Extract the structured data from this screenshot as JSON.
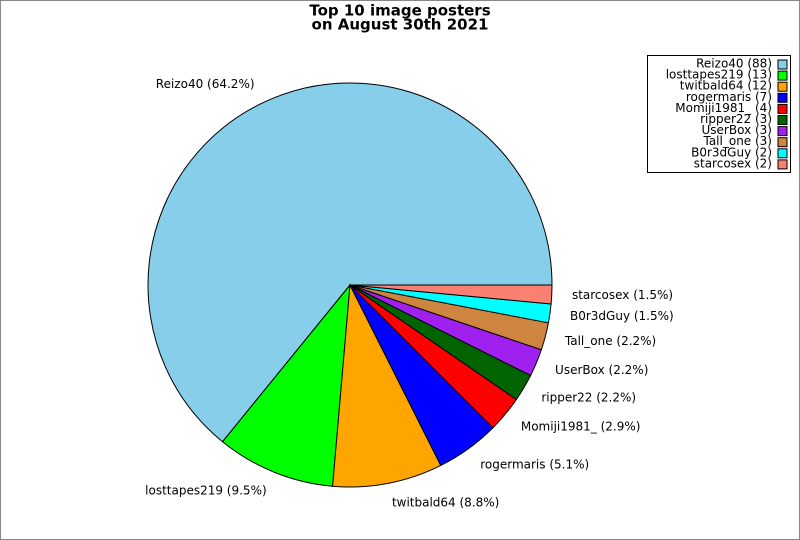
{
  "chart_data": {
    "type": "pie",
    "title": "Top 10 image posters",
    "subtitle": "on August 30th 2021",
    "categories": [
      "Reizo40 (88)",
      "losttapes219 (13)",
      "twitbald64 (12)",
      "rogermaris (7)",
      "Momiji1981_ (4)",
      "ripper22 (3)",
      "UserBox (3)",
      "Tall_one (3)",
      "B0r3dGuy (2)",
      "starcosex (2)"
    ],
    "values": [
      64.2,
      9.5,
      8.8,
      5.1,
      2.9,
      2.2,
      2.2,
      2.2,
      1.5,
      1.5
    ],
    "value_labels": [
      "Reizo40 (64.2%)",
      "losttapes219 (9.5%)",
      "twitbald64 (8.8%)",
      "rogermaris (5.1%)",
      "Momiji1981_ (2.9%)",
      "ripper22 (2.2%)",
      "UserBox (2.2%)",
      "Tall_one (2.2%)",
      "B0r3dGuy (1.5%)",
      "starcosex (1.5%)"
    ],
    "colors": [
      "#87ceeb",
      "#00ff00",
      "#ffa500",
      "#0000ff",
      "#ff0000",
      "#006400",
      "#a020f0",
      "#cd853f",
      "#00ffff",
      "#fa8072"
    ],
    "legend": "upper right"
  }
}
